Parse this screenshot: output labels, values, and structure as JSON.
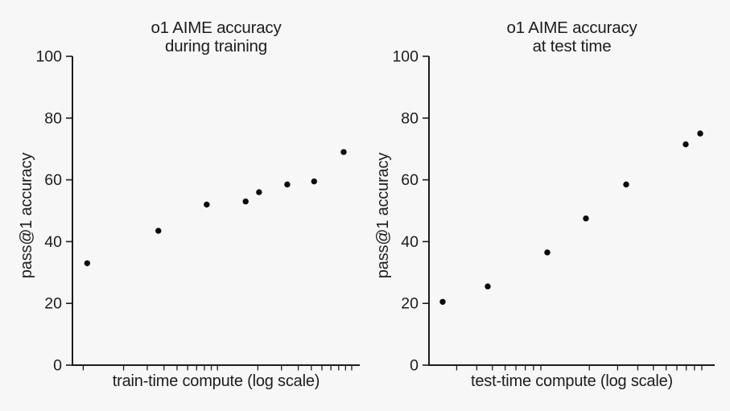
{
  "page": {
    "background_color": "#f7f7f8",
    "ink_color": "#1c1c1c",
    "point_color": "#0b0b0b"
  },
  "chart_data": [
    {
      "type": "scatter",
      "title_lines": [
        "o1 AIME accuracy",
        "during training"
      ],
      "xlabel": "train-time compute (log scale)",
      "ylabel": "pass@1 accuracy",
      "ylim": [
        0,
        100
      ],
      "yticks": [
        0,
        20,
        40,
        60,
        80,
        100
      ],
      "x_axis": {
        "scale": "log",
        "numeric_labels": false,
        "log_span": [
          -0.08,
          2.06
        ],
        "minor_ticks_per_decade": [
          1,
          2,
          3,
          4,
          5,
          6,
          7,
          8,
          9
        ]
      },
      "grid": false,
      "legend": null,
      "points": [
        {
          "x_log": 0.03,
          "y": 33
        },
        {
          "x_log": 0.56,
          "y": 43.5
        },
        {
          "x_log": 0.92,
          "y": 52
        },
        {
          "x_log": 1.21,
          "y": 53
        },
        {
          "x_log": 1.31,
          "y": 56
        },
        {
          "x_log": 1.52,
          "y": 58.5
        },
        {
          "x_log": 1.72,
          "y": 59.5
        },
        {
          "x_log": 1.94,
          "y": 69
        }
      ]
    },
    {
      "type": "scatter",
      "title_lines": [
        "o1 AIME accuracy",
        "at test time"
      ],
      "xlabel": "test-time compute (log scale)",
      "ylabel": "pass@1 accuracy",
      "ylim": [
        0,
        100
      ],
      "yticks": [
        0,
        20,
        40,
        60,
        80,
        100
      ],
      "x_axis": {
        "scale": "log",
        "numeric_labels": false,
        "log_span": [
          0.305,
          2.08
        ],
        "minor_ticks_per_decade": [
          1,
          2,
          3,
          4,
          5,
          6,
          7,
          8,
          9
        ]
      },
      "grid": false,
      "legend": null,
      "points": [
        {
          "x_log": 0.39,
          "y": 20.5
        },
        {
          "x_log": 0.67,
          "y": 25.5
        },
        {
          "x_log": 1.04,
          "y": 36.5
        },
        {
          "x_log": 1.28,
          "y": 47.5
        },
        {
          "x_log": 1.53,
          "y": 58.5
        },
        {
          "x_log": 1.9,
          "y": 71.5
        },
        {
          "x_log": 1.99,
          "y": 75
        }
      ]
    }
  ]
}
